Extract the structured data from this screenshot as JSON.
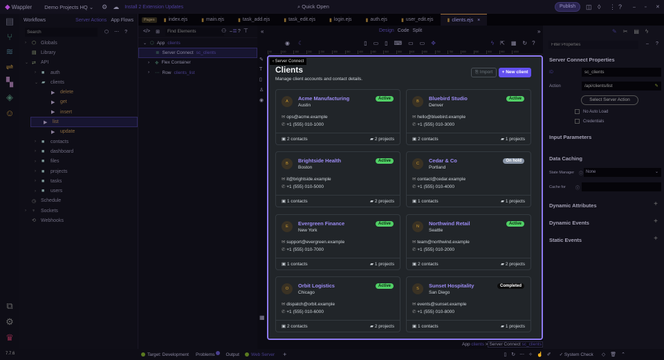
{
  "topbar": {
    "app": "Wappler",
    "project": "Demo Projects HQ",
    "updates": "Install 2 Extension Updates",
    "quick_open": "Quick Open",
    "publish": "Publish"
  },
  "workflows": {
    "title": "Workflows",
    "tab_server": "Server Actions",
    "tab_app": "App Flows",
    "search_placeholder": "Search",
    "items": [
      {
        "label": "Globals",
        "depth": 0,
        "icon": "globe-icon",
        "color": "#7e8a6a",
        "arrow": ">"
      },
      {
        "label": "Library",
        "depth": 0,
        "icon": "library-icon",
        "color": "#7e8a6a",
        "arrow": ""
      },
      {
        "label": "API",
        "depth": 0,
        "icon": "arrows-icon",
        "color": "#7e8a6a",
        "arrow": "v"
      },
      {
        "label": "auth",
        "depth": 1,
        "icon": "folder-icon",
        "color": "#7e9a9a",
        "arrow": ">"
      },
      {
        "label": "clients",
        "depth": 1,
        "icon": "folder-open-icon",
        "color": "#7e9a9a",
        "arrow": "v"
      },
      {
        "label": "delete",
        "depth": 2,
        "icon": "play-icon",
        "color": "#8a7e9a",
        "arrow": ""
      },
      {
        "label": "get",
        "depth": 2,
        "icon": "play-icon",
        "color": "#8a7e9a",
        "arrow": ""
      },
      {
        "label": "insert",
        "depth": 2,
        "icon": "play-icon",
        "color": "#8a7e9a",
        "arrow": ""
      },
      {
        "label": "list",
        "depth": 2,
        "icon": "play-icon",
        "color": "#8a7e9a",
        "arrow": "",
        "selected": true
      },
      {
        "label": "update",
        "depth": 2,
        "icon": "play-icon",
        "color": "#8a7e9a",
        "arrow": ""
      },
      {
        "label": "contacts",
        "depth": 1,
        "icon": "folder-icon",
        "color": "#7e9a9a",
        "arrow": ">"
      },
      {
        "label": "dashboard",
        "depth": 1,
        "icon": "folder-icon",
        "color": "#7e9a9a",
        "arrow": ">"
      },
      {
        "label": "files",
        "depth": 1,
        "icon": "folder-icon",
        "color": "#7e9a9a",
        "arrow": ">"
      },
      {
        "label": "projects",
        "depth": 1,
        "icon": "folder-icon",
        "color": "#7e9a9a",
        "arrow": ">"
      },
      {
        "label": "tasks",
        "depth": 1,
        "icon": "folder-icon",
        "color": "#7e9a9a",
        "arrow": ">"
      },
      {
        "label": "users",
        "depth": 1,
        "icon": "folder-icon",
        "color": "#7e9a9a",
        "arrow": ">"
      },
      {
        "label": "Schedule",
        "depth": 0,
        "icon": "clock-icon",
        "color": "#6a6a6a",
        "arrow": ""
      },
      {
        "label": "Sockets",
        "depth": 0,
        "icon": "plug-icon",
        "color": "#6a6a6a",
        "arrow": ">"
      },
      {
        "label": "Webhooks",
        "depth": 0,
        "icon": "webhook-icon",
        "color": "#6a6a6a",
        "arrow": ""
      }
    ]
  },
  "tabs": {
    "pages_label": "Pages",
    "files": [
      "index.ejs",
      "main.ejs",
      "task_add.ejs",
      "task_edit.ejs",
      "login.ejs",
      "auth.ejs",
      "user_edit.ejs",
      "clients.ejs"
    ],
    "active": "clients.ejs"
  },
  "view_modes": {
    "design": "Design",
    "code": "Code",
    "split": "Split"
  },
  "structure": {
    "find_placeholder": "Find Elements",
    "items": [
      {
        "label": "App",
        "name": "clients",
        "depth": 0
      },
      {
        "label": "Server Connect",
        "name": "sc_clients",
        "depth": 1,
        "selected": true
      },
      {
        "label": "Flex Container",
        "name": "",
        "depth": 1
      },
      {
        "label": "Row",
        "name": "clients_list",
        "depth": 1
      }
    ]
  },
  "canvas": {
    "tooltip": "Server Connect",
    "title": "Clients",
    "subtitle": "Manage client accounts and contact details.",
    "import_label": "Import",
    "new_label": "New client",
    "clients": [
      {
        "initial": "A",
        "name": "Acme Manufacturing",
        "city": "Austin",
        "status": "Active",
        "email": "ops@acme.example",
        "phone": "+1 (555) 010-1000",
        "contacts": "2 contacts",
        "projects": "2 projects"
      },
      {
        "initial": "B",
        "name": "Bluebird Studio",
        "city": "Denver",
        "status": "Active",
        "email": "hello@bluebird.example",
        "phone": "+1 (555) 010-3000",
        "contacts": "2 contacts",
        "projects": "1 projects"
      },
      {
        "initial": "B",
        "name": "Brightside Health",
        "city": "Boston",
        "status": "Active",
        "email": "it@brightside.example",
        "phone": "+1 (555) 010-5000",
        "contacts": "1 contacts",
        "projects": "2 projects"
      },
      {
        "initial": "C",
        "name": "Cedar & Co",
        "city": "Portland",
        "status": "On hold",
        "email": "contact@cedar.example",
        "phone": "+1 (555) 010-4000",
        "contacts": "1 contacts",
        "projects": "1 projects"
      },
      {
        "initial": "E",
        "name": "Evergreen Finance",
        "city": "New York",
        "status": "Active",
        "email": "support@evergreen.example",
        "phone": "+1 (555) 010-7000",
        "contacts": "1 contacts",
        "projects": "1 projects"
      },
      {
        "initial": "N",
        "name": "Northwind Retail",
        "city": "Seattle",
        "status": "Active",
        "email": "team@northwind.example",
        "phone": "+1 (555) 010-2000",
        "contacts": "2 contacts",
        "projects": "2 projects"
      },
      {
        "initial": "O",
        "name": "Orbit Logistics",
        "city": "Chicago",
        "status": "Active",
        "email": "dispatch@orbit.example",
        "phone": "+1 (555) 010-6000",
        "contacts": "2 contacts",
        "projects": "2 projects"
      },
      {
        "initial": "S",
        "name": "Sunset Hospitality",
        "city": "San Diego",
        "status": "Completed",
        "email": "events@sunset.example",
        "phone": "+1 (555) 010-8000",
        "contacts": "1 contacts",
        "projects": "1 projects"
      }
    ],
    "status_colors": {
      "Active": "#51cf66",
      "On hold": "#8a96a8",
      "Completed": "#0b0b0b"
    },
    "breadcrumb": {
      "app": "App",
      "app_name": "clients",
      "sep": ">",
      "sc": "Server Connect",
      "sc_name": "sc_clients"
    }
  },
  "ruler": [
    "50",
    "100",
    "150",
    "200",
    "250",
    "300",
    "350",
    "400",
    "450",
    "500",
    "550",
    "600",
    "650",
    "700",
    "750",
    "800",
    "850",
    "900",
    "950",
    "1000"
  ],
  "props": {
    "filter_placeholder": "Filter Properties",
    "title": "Server Connect Properties",
    "id_label": "ID",
    "id_value": "sc_clients",
    "action_label": "Action",
    "action_value": "/api/clients/list",
    "select_btn": "Select Server Action",
    "no_auto_load": "No Auto Load",
    "credentials": "Credentials",
    "input_params": "Input Parameters",
    "data_caching": "Data Caching",
    "state_manager_label": "State Manager",
    "state_manager_value": "None",
    "cache_for_label": "Cache for",
    "dyn_attrs": "Dynamic Attributes",
    "dyn_events": "Dynamic Events",
    "static_events": "Static Events"
  },
  "status": {
    "target": "Target: Development",
    "problems": "Problems",
    "output": "Output",
    "web_server": "Web Server",
    "system_check": "System Check",
    "version": "7.7.6"
  },
  "accent": "#6d5ce8"
}
